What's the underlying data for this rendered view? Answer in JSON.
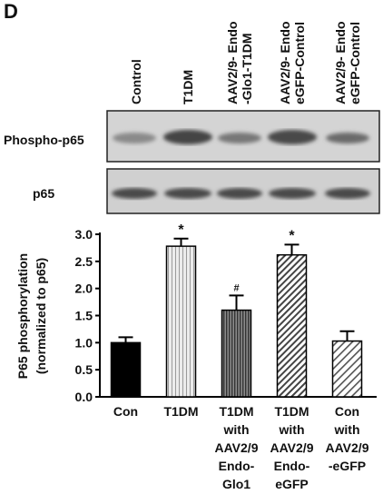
{
  "panel_label": "D",
  "blot": {
    "lane_labels": [
      [
        "Control"
      ],
      [
        "T1DM"
      ],
      [
        "AAV2/9- Endo",
        "-Glo1-T1DM"
      ],
      [
        "AAV2/9- Endo",
        "eGFP-Control"
      ],
      [
        "AAV2/9- Endo",
        "eGFP-Control"
      ]
    ],
    "row_labels": [
      "Phospho-p65",
      "p65"
    ]
  },
  "chart_data": {
    "type": "bar",
    "y_label": [
      "P65 phosphorylation",
      "(normalized to p65)"
    ],
    "categories": [
      [
        "Con"
      ],
      [
        "T1DM"
      ],
      [
        "T1DM",
        "with",
        "AAV2/9",
        "Endo-",
        "Glo1"
      ],
      [
        "T1DM",
        "with",
        "AAV2/9",
        "Endo-",
        "eGFP"
      ],
      [
        "Con",
        "with",
        "AAV2/9",
        "-eGFP"
      ]
    ],
    "values": [
      1.0,
      2.78,
      1.6,
      2.62,
      1.03
    ],
    "errors": [
      0.1,
      0.14,
      0.27,
      0.19,
      0.18
    ],
    "significance": [
      null,
      "*",
      "#",
      "*",
      null
    ],
    "colors": [
      "#000000",
      "#e6e6e6",
      "#6a6a6a",
      "#ffffff",
      "#ffffff"
    ],
    "patterns": [
      "solid",
      "dots",
      "vertical",
      "diagonal",
      "diagonal-light"
    ],
    "ylim": [
      0,
      3.0
    ],
    "yticks": [
      {
        "value": 0,
        "label": "0.0"
      },
      {
        "value": 0.5,
        "label": "0.5"
      },
      {
        "value": 1,
        "label": "1.0"
      },
      {
        "value": 1.5,
        "label": "1.5"
      },
      {
        "value": 2,
        "label": "2.0"
      },
      {
        "value": 2.5,
        "label": "2.5"
      },
      {
        "value": 3,
        "label": "3.0"
      }
    ]
  }
}
